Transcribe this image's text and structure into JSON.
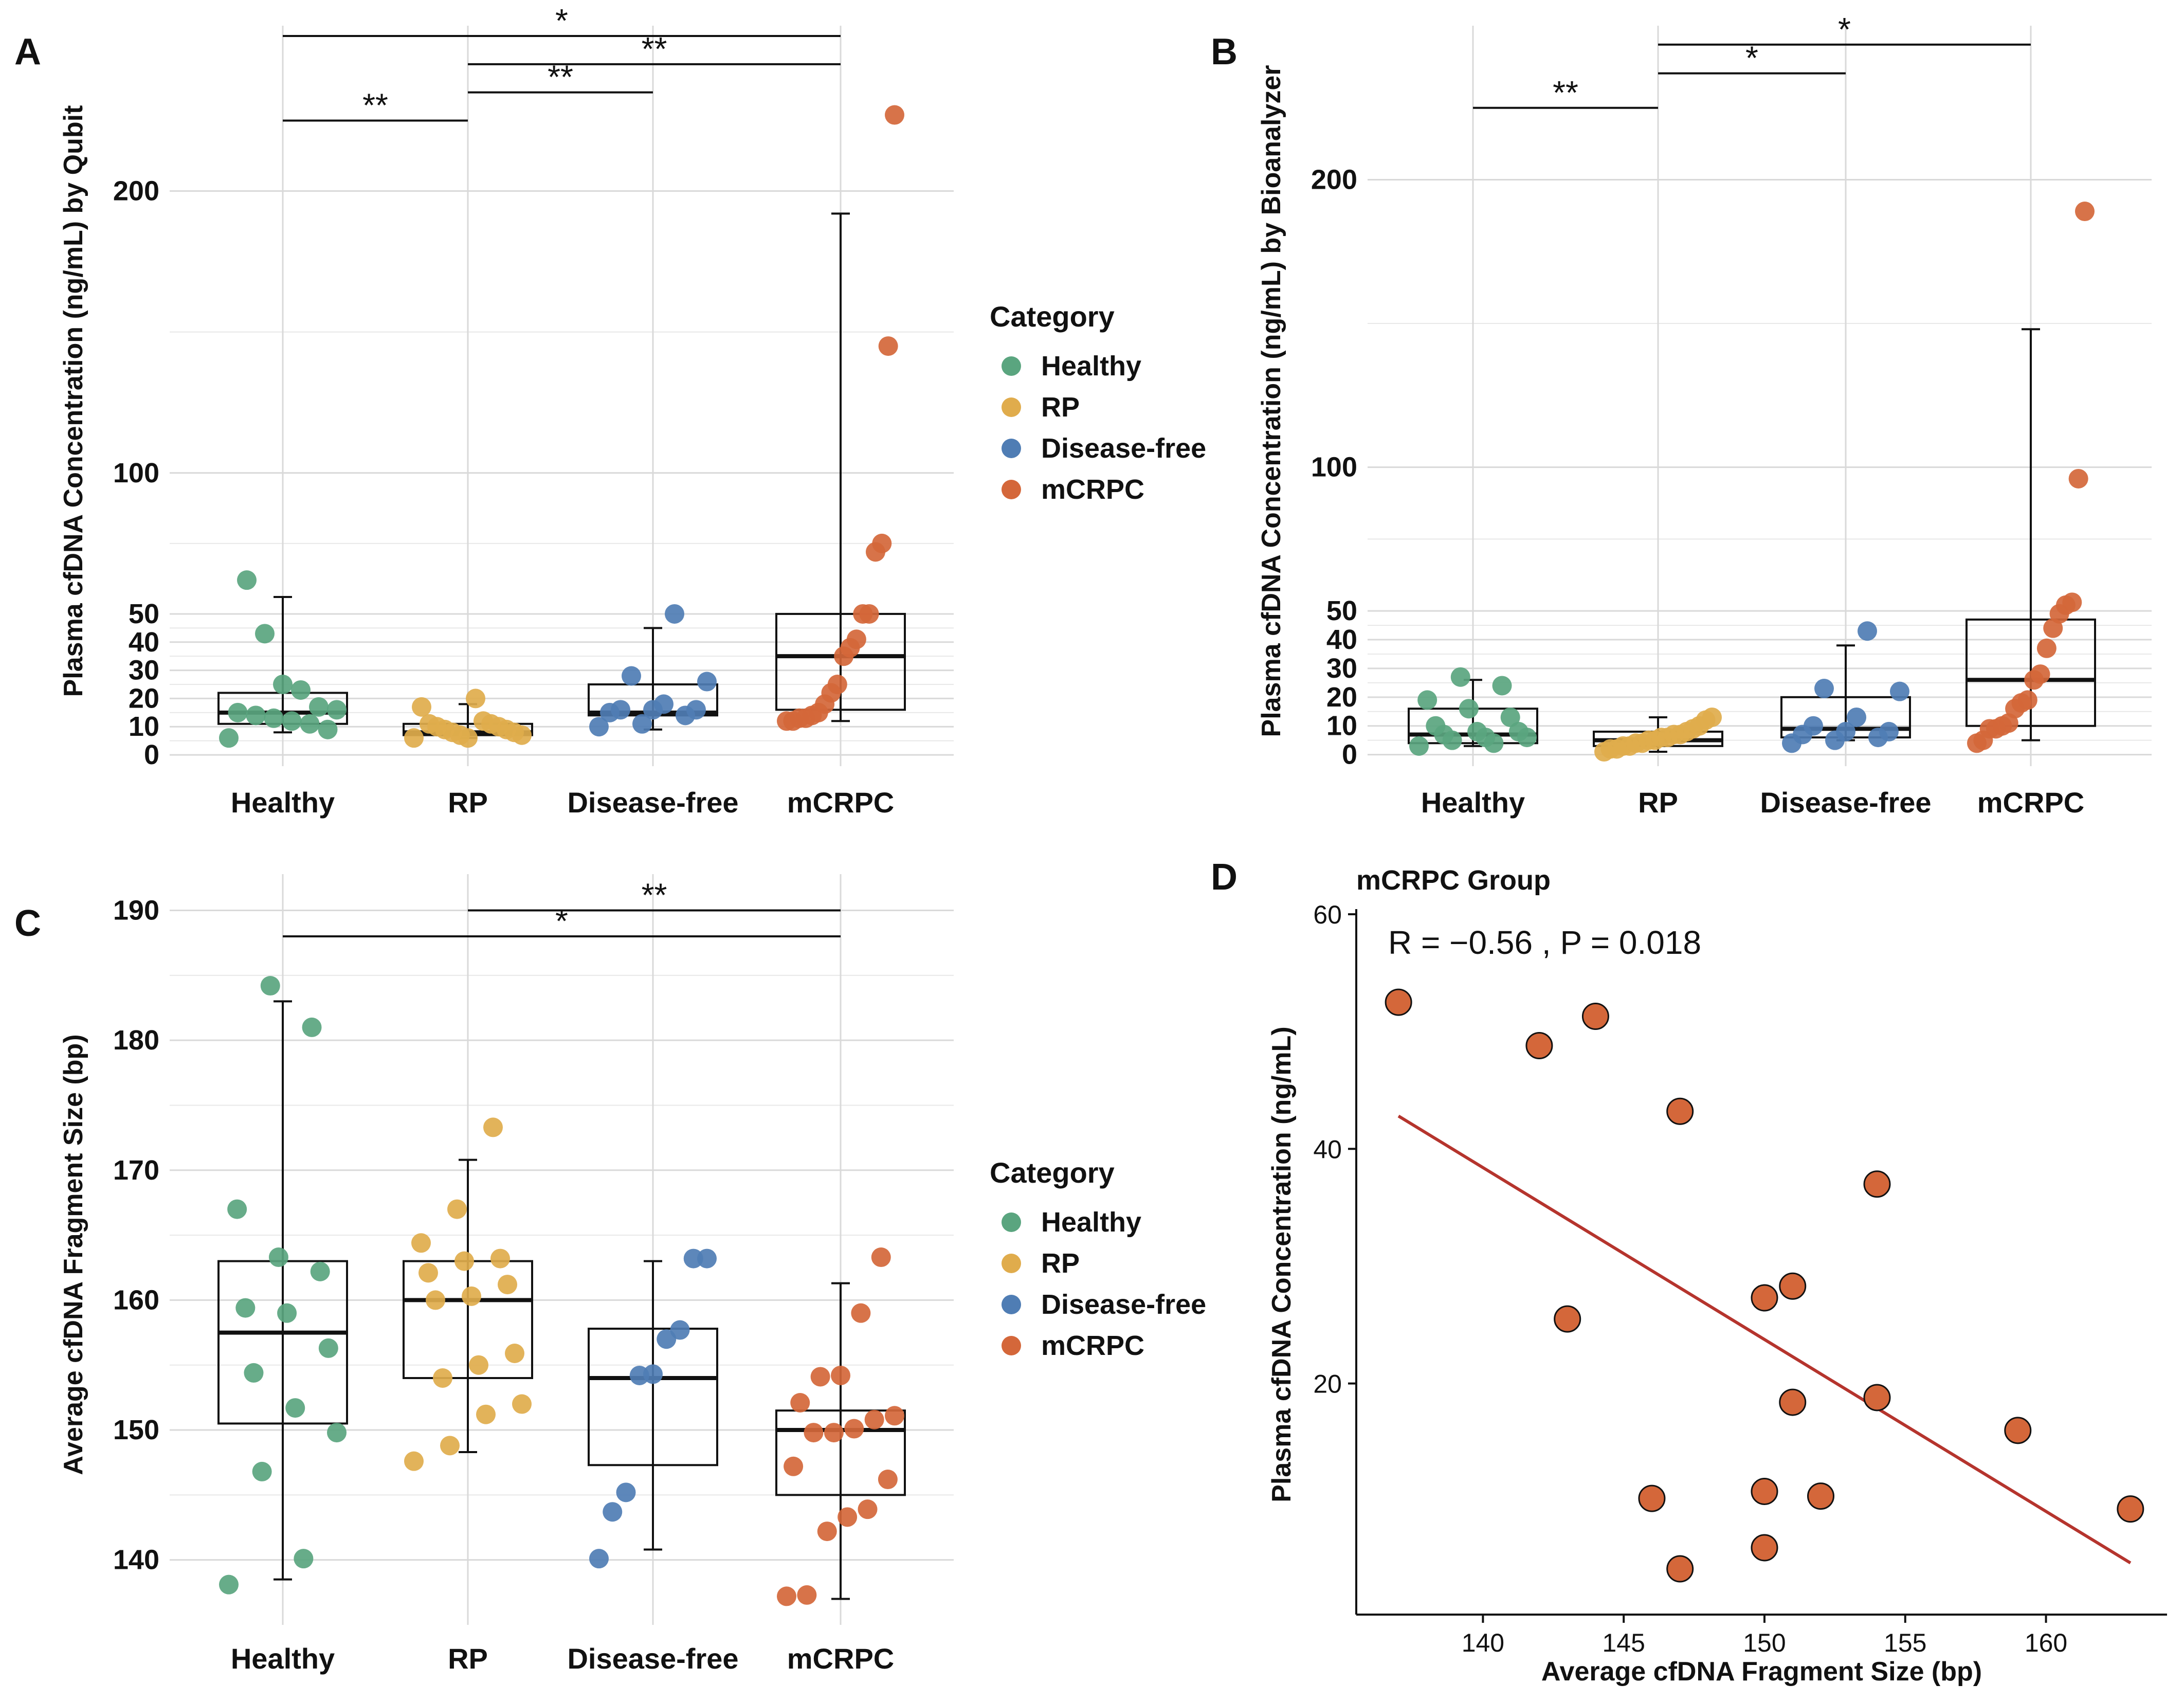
{
  "colors": {
    "Healthy": "#5aa57f",
    "RP": "#e0ac4c",
    "Disease-free": "#4f7db4",
    "mCRPC": "#d4673a",
    "trend": "#b5342d",
    "grid": "#d9d9d9",
    "text": "#111111"
  },
  "legend": {
    "title": "Category",
    "items": [
      "Healthy",
      "RP",
      "Disease-free",
      "mCRPC"
    ]
  },
  "chart_data": [
    {
      "panel": "A",
      "type": "box-jitter",
      "ylabel": "Plasma cfDNA Concentration (ng/mL) by Qubit",
      "categories": [
        "Healthy",
        "RP",
        "Disease-free",
        "mCRPC"
      ],
      "yticks": [
        0,
        10,
        20,
        30,
        40,
        50,
        100,
        200
      ],
      "ylim": [
        -4,
        255
      ],
      "boxes": [
        {
          "category": "Healthy",
          "q1": 11,
          "median": 15,
          "q3": 22,
          "wlo": 8,
          "whi": 56
        },
        {
          "category": "RP",
          "q1": 7,
          "median": 8,
          "q3": 11,
          "wlo": 6,
          "whi": 18
        },
        {
          "category": "Disease-free",
          "q1": 14,
          "median": 15,
          "q3": 25,
          "wlo": 9,
          "whi": 45
        },
        {
          "category": "mCRPC",
          "q1": 16,
          "median": 35,
          "q3": 50,
          "wlo": 12,
          "whi": 192
        }
      ],
      "points": {
        "Healthy": [
          6,
          9,
          11,
          12,
          13,
          14,
          15,
          16,
          17,
          23,
          25,
          43,
          62
        ],
        "RP": [
          6,
          6,
          7,
          7,
          8,
          8,
          9,
          9,
          10,
          10,
          11,
          11,
          12,
          17,
          20
        ],
        "Disease-free": [
          10,
          11,
          14,
          15,
          16,
          16,
          16,
          18,
          26,
          28,
          50
        ],
        "mCRPC": [
          12,
          12,
          13,
          13,
          14,
          15,
          18,
          22,
          25,
          35,
          38,
          41,
          50,
          50,
          72,
          75,
          145,
          227
        ]
      },
      "significance": [
        {
          "from": "Healthy",
          "to": "RP",
          "label": "**",
          "y": 225
        },
        {
          "from": "RP",
          "to": "Disease-free",
          "label": "**",
          "y": 235
        },
        {
          "from": "RP",
          "to": "mCRPC",
          "label": "**",
          "y": 245
        },
        {
          "from": "Healthy",
          "to": "mCRPC",
          "label": "*",
          "y": 255
        }
      ]
    },
    {
      "panel": "B",
      "type": "box-jitter",
      "ylabel": "Plasma cfDNA Concentration (ng/mL) by Bioanalyzer",
      "categories": [
        "Healthy",
        "RP",
        "Disease-free",
        "mCRPC"
      ],
      "yticks": [
        0,
        10,
        20,
        30,
        40,
        50,
        100,
        200
      ],
      "ylim": [
        -4,
        250
      ],
      "boxes": [
        {
          "category": "Healthy",
          "q1": 4,
          "median": 7,
          "q3": 16,
          "wlo": 3,
          "whi": 26
        },
        {
          "category": "RP",
          "q1": 3,
          "median": 5,
          "q3": 8,
          "wlo": 1,
          "whi": 13
        },
        {
          "category": "Disease-free",
          "q1": 6,
          "median": 9,
          "q3": 20,
          "wlo": 5,
          "whi": 38
        },
        {
          "category": "mCRPC",
          "q1": 10,
          "median": 26,
          "q3": 47,
          "wlo": 5,
          "whi": 148
        }
      ],
      "points": {
        "Healthy": [
          3,
          4,
          5,
          6,
          6,
          7,
          8,
          8,
          10,
          13,
          16,
          19,
          24,
          27
        ],
        "RP": [
          1,
          2,
          2,
          3,
          3,
          4,
          4,
          5,
          5,
          6,
          6,
          7,
          7,
          8,
          9,
          10,
          12,
          13
        ],
        "Disease-free": [
          4,
          5,
          6,
          7,
          8,
          8,
          10,
          13,
          22,
          23,
          43
        ],
        "mCRPC": [
          4,
          5,
          9,
          9,
          10,
          11,
          16,
          18,
          19,
          26,
          28,
          37,
          44,
          49,
          52,
          53,
          96,
          189
        ]
      },
      "significance": [
        {
          "from": "Healthy",
          "to": "RP",
          "label": "**",
          "y": 225
        },
        {
          "from": "RP",
          "to": "Disease-free",
          "label": "*",
          "y": 237
        },
        {
          "from": "RP",
          "to": "mCRPC",
          "label": "*",
          "y": 247
        }
      ]
    },
    {
      "panel": "C",
      "type": "box-jitter",
      "ylabel": "Average cfDNA Fragment Size (bp)",
      "categories": [
        "Healthy",
        "RP",
        "Disease-free",
        "mCRPC"
      ],
      "yticks": [
        140,
        150,
        160,
        170,
        180,
        190
      ],
      "ylim": [
        135,
        192
      ],
      "boxes": [
        {
          "category": "Healthy",
          "q1": 150.5,
          "median": 157.5,
          "q3": 163,
          "wlo": 138.5,
          "whi": 183
        },
        {
          "category": "RP",
          "q1": 154,
          "median": 160,
          "q3": 163,
          "wlo": 148.3,
          "whi": 170.8
        },
        {
          "category": "Disease-free",
          "q1": 147.3,
          "median": 154,
          "q3": 157.8,
          "wlo": 140.8,
          "whi": 163
        },
        {
          "category": "mCRPC",
          "q1": 145,
          "median": 150,
          "q3": 151.5,
          "wlo": 137,
          "whi": 161.3
        }
      ],
      "points": {
        "Healthy": [
          138.1,
          140.1,
          146.8,
          149.8,
          151.7,
          154.4,
          156.3,
          159,
          159.4,
          162.2,
          163.3,
          167,
          181,
          184.2
        ],
        "RP": [
          147.6,
          148.8,
          151.2,
          152,
          154,
          155,
          155.9,
          160,
          160.3,
          161.2,
          162.1,
          163,
          163.2,
          164.4,
          167,
          173.3
        ],
        "Disease-free": [
          140.1,
          143.7,
          145.2,
          154.2,
          154.3,
          157,
          157.7,
          163.2,
          163.2
        ],
        "mCRPC": [
          137.2,
          137.3,
          142.2,
          143.3,
          143.9,
          146.2,
          147.2,
          149.8,
          149.8,
          150.1,
          150.8,
          151.1,
          152.1,
          154.1,
          154.2,
          159,
          163.3
        ]
      },
      "significance": [
        {
          "from": "RP",
          "to": "mCRPC",
          "label": "**",
          "y": 190
        },
        {
          "from": "Healthy",
          "to": "mCRPC",
          "label": "*",
          "y": 188
        }
      ]
    },
    {
      "panel": "D",
      "type": "scatter",
      "title": "mCRPC Group",
      "annotation": "R = −0.56 , P = 0.018",
      "xlabel": "Average cfDNA Fragment Size (bp)",
      "ylabel": "Plasma cfDNA Concentration (ng/mL)",
      "xticks": [
        140,
        145,
        150,
        155,
        160
      ],
      "yticks": [
        20,
        40,
        60
      ],
      "xlim": [
        135.5,
        164.3
      ],
      "ylim": [
        0.3,
        60
      ],
      "points": [
        {
          "x": 137,
          "y": 52.5
        },
        {
          "x": 142,
          "y": 48.8
        },
        {
          "x": 143,
          "y": 25.5
        },
        {
          "x": 144,
          "y": 51.3
        },
        {
          "x": 146,
          "y": 10.2
        },
        {
          "x": 147,
          "y": 4.2
        },
        {
          "x": 147,
          "y": 43.2
        },
        {
          "x": 150,
          "y": 10.8
        },
        {
          "x": 150,
          "y": 27.3
        },
        {
          "x": 150,
          "y": 6.0
        },
        {
          "x": 151,
          "y": 18.4
        },
        {
          "x": 151,
          "y": 28.3
        },
        {
          "x": 152,
          "y": 10.4
        },
        {
          "x": 154,
          "y": 18.8
        },
        {
          "x": 154,
          "y": 37.0
        },
        {
          "x": 159,
          "y": 16.0
        },
        {
          "x": 163,
          "y": 9.3
        }
      ],
      "trend": {
        "x1": 137,
        "y1": 42.8,
        "x2": 163,
        "y2": 4.7
      }
    }
  ]
}
